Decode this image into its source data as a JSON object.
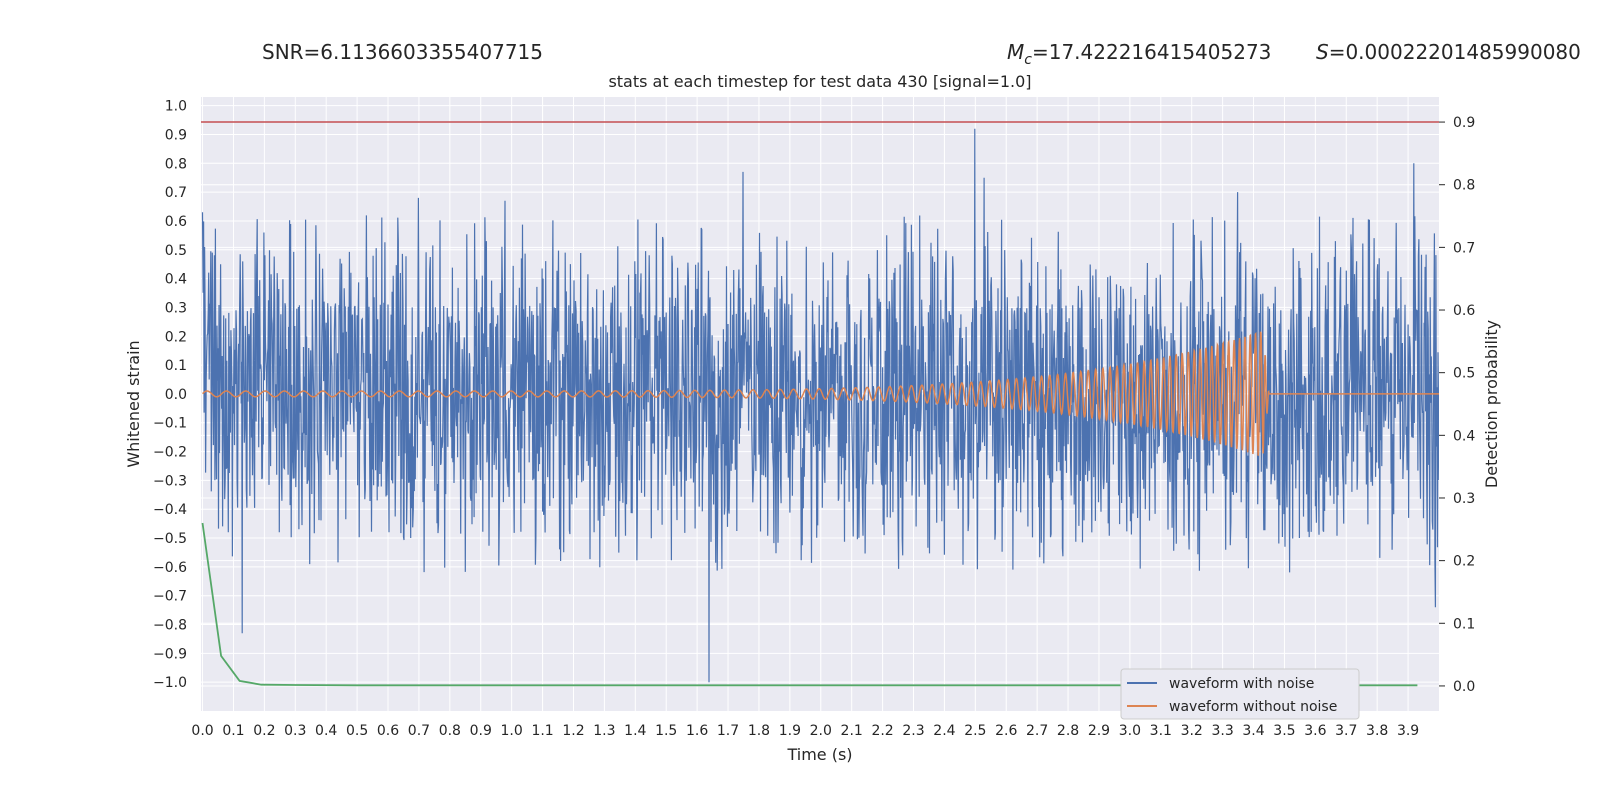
{
  "header": {
    "snr": "SNR=6.1136603355407715",
    "mc_symbol": "M",
    "mc_sub": "c",
    "mc_value": "=17.422216415405273",
    "s_symbol": "S",
    "s_value": "=0.00022201485990080"
  },
  "chart_data": {
    "type": "line",
    "title": "stats at each timestep for test data 430 [signal=1.0]",
    "xlabel": "Time (s)",
    "ylabel": "Whitened strain",
    "y2label": "Detection probability",
    "xlim": [
      -0.005,
      4.0
    ],
    "ylim": [
      -1.1,
      1.03
    ],
    "y2lim": [
      -0.04,
      0.94
    ],
    "xticks": [
      "0.0",
      "0.1",
      "0.2",
      "0.3",
      "0.4",
      "0.5",
      "0.6",
      "0.7",
      "0.8",
      "0.9",
      "1.0",
      "1.1",
      "1.2",
      "1.3",
      "1.4",
      "1.5",
      "1.6",
      "1.7",
      "1.8",
      "1.9",
      "2.0",
      "2.1",
      "2.2",
      "2.3",
      "2.4",
      "2.5",
      "2.6",
      "2.7",
      "2.8",
      "2.9",
      "3.0",
      "3.1",
      "3.2",
      "3.3",
      "3.4",
      "3.5",
      "3.6",
      "3.7",
      "3.8",
      "3.9"
    ],
    "yticks": [
      "1.0",
      "0.9",
      "0.8",
      "0.7",
      "0.6",
      "0.5",
      "0.4",
      "0.3",
      "0.2",
      "0.1",
      "0.0",
      "-0.1",
      "-0.2",
      "-0.3",
      "-0.4",
      "-0.5",
      "-0.6",
      "-0.7",
      "-0.8",
      "-0.9",
      "-1.0"
    ],
    "y2ticks": [
      "0.9",
      "0.8",
      "0.7",
      "0.6",
      "0.5",
      "0.4",
      "0.3",
      "0.2",
      "0.1",
      "0.0"
    ],
    "grid": true,
    "legend_position": "lower-right",
    "threshold": {
      "axis": "right",
      "y": 0.9,
      "color": "#c44e52"
    },
    "series": [
      {
        "name": "waveform with noise",
        "axis": "left",
        "color": "#4c72b0",
        "noise_band": [
          -0.35,
          0.35
        ],
        "extremes": [
          {
            "x": 0.0,
            "y": 0.63
          },
          {
            "x": 0.13,
            "y": -0.83
          },
          {
            "x": 0.2,
            "y": 0.56
          },
          {
            "x": 0.7,
            "y": 0.68
          },
          {
            "x": 0.98,
            "y": 0.67
          },
          {
            "x": 1.64,
            "y": -1.0
          },
          {
            "x": 1.75,
            "y": 0.77
          },
          {
            "x": 2.5,
            "y": 0.92
          },
          {
            "x": 2.53,
            "y": 0.75
          },
          {
            "x": 3.35,
            "y": 0.7
          },
          {
            "x": 3.92,
            "y": 0.8
          },
          {
            "x": 3.99,
            "y": -0.74
          }
        ]
      },
      {
        "name": "waveform without noise",
        "axis": "left",
        "color": "#dd8452",
        "chirp": {
          "start_amplitude": 0.01,
          "peak_amplitude": 0.22,
          "merger_time": 3.43,
          "start_freq_hz": 16,
          "end_freq_hz": 60
        }
      },
      {
        "name": "Detection probability",
        "axis": "right",
        "color": "#55a868",
        "x": [
          0.0,
          0.06,
          0.12,
          0.19,
          0.3,
          0.5,
          1.0,
          2.0,
          3.0,
          3.93
        ],
        "y": [
          0.26,
          0.048,
          0.008,
          0.002,
          0.0015,
          0.001,
          0.001,
          0.001,
          0.001,
          0.001
        ]
      }
    ]
  }
}
